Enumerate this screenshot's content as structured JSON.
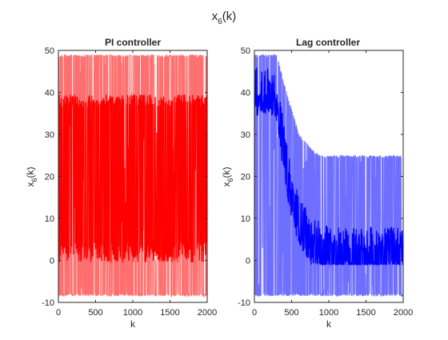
{
  "figure": {
    "suptitle_base": "x",
    "suptitle_sub": "6",
    "suptitle_tail": "(k)"
  },
  "chart_data": [
    {
      "type": "line",
      "title": "PI controller",
      "xlabel": "k",
      "ylabel_base": "x",
      "ylabel_sub": "6",
      "ylabel_tail": "(k)",
      "xlim": [
        0,
        2000
      ],
      "ylim": [
        -10,
        50
      ],
      "xticks": [
        0,
        500,
        1000,
        1500,
        2000
      ],
      "yticks": [
        -10,
        0,
        10,
        20,
        30,
        40,
        50
      ],
      "grid": false,
      "series": [
        {
          "color": "#ff6f6f",
          "description": "noisy measured signal spanning approx -8.5 to 49",
          "band": [
            -8.5,
            49
          ],
          "x": [
            0,
            100,
            200,
            300,
            400,
            500,
            600,
            700,
            800,
            900,
            1000,
            1100,
            1200,
            1300,
            1400,
            1500,
            1600,
            1700,
            1800,
            1900,
            2000
          ],
          "values": [
            20,
            20,
            20,
            20,
            20,
            20,
            20,
            20,
            20,
            20,
            20,
            20,
            20,
            20,
            20,
            20,
            20,
            20,
            20,
            20,
            20
          ]
        },
        {
          "color": "#ff0000",
          "description": "controlled signal switching between ~2 and ~38",
          "levels": [
            2,
            38
          ],
          "x": [
            0,
            100,
            200,
            300,
            400,
            500,
            600,
            700,
            800,
            900,
            1000,
            1100,
            1200,
            1300,
            1400,
            1500,
            1600,
            1700,
            1800,
            1900,
            2000
          ],
          "values": [
            38,
            2,
            38,
            2,
            38,
            2,
            38,
            2,
            38,
            2,
            38,
            2,
            38,
            2,
            38,
            2,
            38,
            2,
            38,
            2,
            38
          ]
        }
      ]
    },
    {
      "type": "line",
      "title": "Lag controller",
      "xlabel": "k",
      "ylabel_base": "x",
      "ylabel_sub": "6",
      "ylabel_tail": "(k)",
      "xlim": [
        0,
        2000
      ],
      "ylim": [
        -10,
        50
      ],
      "xticks": [
        0,
        500,
        1000,
        1500,
        2000
      ],
      "yticks": [
        -10,
        0,
        10,
        20,
        30,
        40,
        50
      ],
      "grid": false,
      "series": [
        {
          "color": "#6f6fff",
          "description": "noisy signal whose upper envelope decays from ~49 to ~25",
          "x": [
            0,
            100,
            200,
            300,
            400,
            500,
            600,
            700,
            800,
            900,
            1000,
            1100,
            1200,
            1300,
            1400,
            1500,
            1600,
            1700,
            1800,
            1900,
            2000
          ],
          "upper": [
            49,
            49,
            49,
            49,
            42,
            36,
            30,
            28,
            26,
            25,
            25,
            25,
            25,
            25,
            25,
            25,
            25,
            25,
            25,
            25,
            25
          ],
          "lower": [
            -8.5,
            -8.5,
            -8.5,
            -8.5,
            -8.5,
            -8.5,
            -8.5,
            -8.5,
            -8.5,
            -8.5,
            -8.5,
            -8.5,
            -8.5,
            -8.5,
            -8.5,
            -8.5,
            -8.5,
            -8.5,
            -8.5,
            -8.5,
            -8.5
          ]
        },
        {
          "color": "#0000ff",
          "description": "controlled signal decaying from ~40 to ~2",
          "x": [
            0,
            100,
            200,
            300,
            350,
            400,
            450,
            500,
            550,
            600,
            650,
            700,
            800,
            900,
            1000,
            1200,
            1500,
            2000
          ],
          "values": [
            40,
            40,
            40,
            38,
            32,
            26,
            20,
            16,
            12,
            10,
            8,
            6,
            4,
            3,
            2,
            2,
            2,
            2
          ]
        }
      ]
    }
  ]
}
